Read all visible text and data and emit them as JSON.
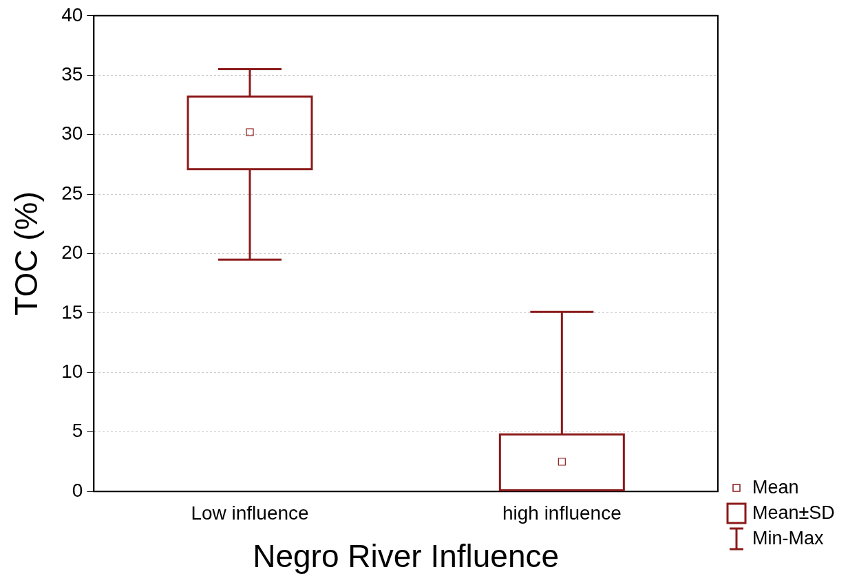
{
  "chart_data": {
    "type": "box",
    "xlabel": "Negro River Influence",
    "ylabel": "TOC (%)",
    "categories": [
      "Low influence",
      "high influence"
    ],
    "color": "#8b1a1a",
    "boxes": [
      {
        "low": 19.5,
        "q1": 27.1,
        "q3": 33.2,
        "high": 35.5,
        "mean": 30.2
      },
      {
        "low": 0.1,
        "q1": 0.1,
        "q3": 4.8,
        "high": 15.1,
        "mean": 2.5
      }
    ],
    "ylim": [
      0,
      40
    ],
    "yticks": [
      0,
      5,
      10,
      15,
      20,
      25,
      30,
      35,
      40
    ],
    "grid": "y",
    "annotations": [
      "Mean",
      "Mean±SD",
      "Min-Max"
    ]
  }
}
